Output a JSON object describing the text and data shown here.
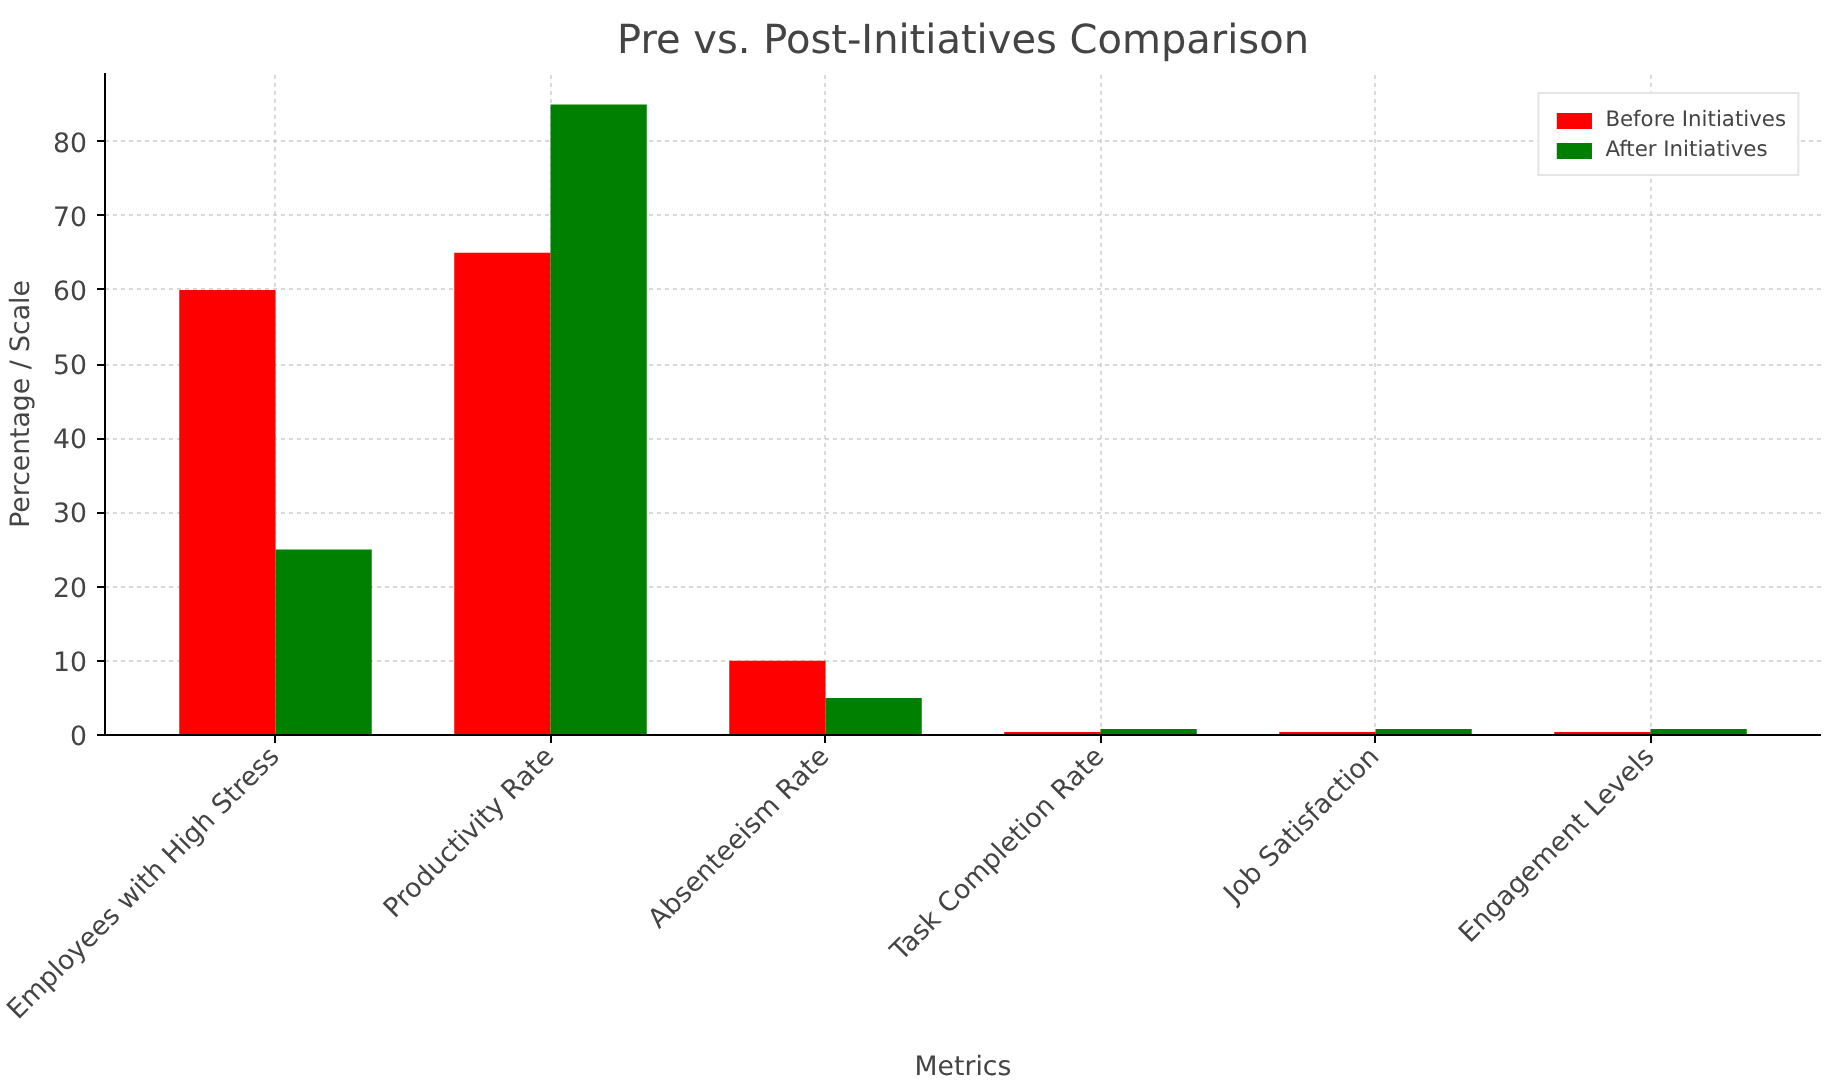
{
  "chart_data": {
    "type": "bar",
    "title": "Pre vs. Post-Initiatives Comparison",
    "xlabel": "Metrics",
    "ylabel": "Percentage / Scale",
    "categories": [
      "Employees with High Stress",
      "Productivity Rate",
      "Absenteeism Rate",
      "Task Completion Rate",
      "Job Satisfaction",
      "Engagement Levels"
    ],
    "series": [
      {
        "name": "Before Initiatives",
        "color": "#ff0000",
        "values": [
          60,
          65,
          10,
          0.4,
          0.4,
          0.4
        ]
      },
      {
        "name": "After Initiatives",
        "color": "#008000",
        "values": [
          25,
          85,
          5,
          0.8,
          0.8,
          0.8
        ]
      }
    ],
    "ylim": [
      0,
      89.25
    ],
    "yticks": [
      0,
      10,
      20,
      30,
      40,
      50,
      60,
      70,
      80
    ],
    "grid": true,
    "legend": "top right"
  }
}
